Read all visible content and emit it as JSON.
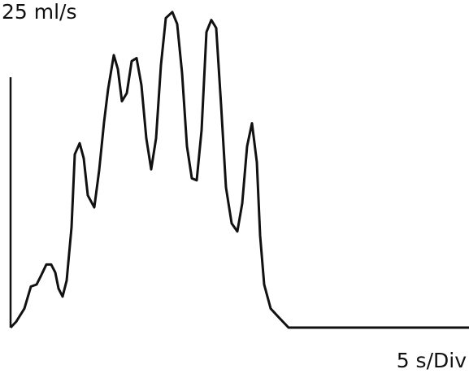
{
  "chart_data": {
    "type": "line",
    "y_label": "25 ml/s",
    "x_label": "5 s/Div",
    "x": [
      0,
      0.35,
      0.85,
      1.25,
      1.6,
      1.85,
      2.2,
      2.5,
      2.75,
      2.95,
      3.2,
      3.45,
      3.75,
      3.95,
      4.25,
      4.5,
      4.75,
      5.15,
      5.45,
      5.75,
      6,
      6.35,
      6.6,
      6.85,
      7.15,
      7.45,
      7.75,
      8.05,
      8.35,
      8.65,
      8.95,
      9.25,
      9.55,
      9.95,
      10.25,
      10.55,
      10.85,
      11.15,
      11.45,
      11.75,
      12.05,
      12.35,
      12.65,
      12.95,
      13.25,
      13.6,
      13.95,
      14.25,
      14.55,
      14.85,
      15.15,
      15.35,
      15.6,
      16,
      16.45,
      17.1,
      28.2
    ],
    "series": [
      {
        "color": "#111111",
        "values": [
          0,
          0.6,
          1.9,
          4.1,
          4.3,
          5.1,
          6.3,
          6.3,
          5.5,
          3.9,
          3.1,
          4.7,
          10,
          17.3,
          18.4,
          16.9,
          13.2,
          12,
          15.7,
          20.5,
          23.8,
          27.2,
          25.8,
          22.6,
          23.4,
          26.6,
          26.9,
          24.2,
          18.9,
          15.8,
          18.9,
          26.2,
          30.9,
          31.5,
          30.3,
          25.4,
          18.1,
          14.9,
          14.7,
          19.7,
          29.5,
          30.7,
          29.9,
          22.2,
          14,
          10.4,
          9.6,
          12.4,
          18.1,
          20.4,
          16.5,
          9.2,
          4.3,
          1.9,
          1.1,
          0,
          0
        ]
      }
    ],
    "xlim": [
      0,
      28.2
    ],
    "ylim": [
      0,
      32.7
    ]
  }
}
